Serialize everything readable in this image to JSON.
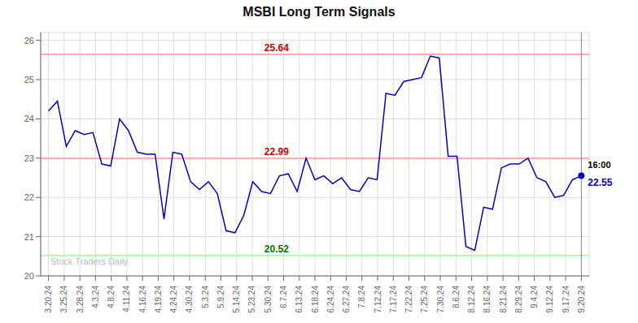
{
  "chart_data": {
    "type": "line",
    "title": "MSBI Long Term Signals",
    "grid": true,
    "xlim": [
      -0.5,
      34.5
    ],
    "xticks": [
      {
        "value": 0,
        "label": "3.20.24"
      },
      {
        "value": 1,
        "label": "3.25.24"
      },
      {
        "value": 2,
        "label": "3.28.24"
      },
      {
        "value": 3,
        "label": "4.3.24"
      },
      {
        "value": 4,
        "label": "4.8.24"
      },
      {
        "value": 5,
        "label": "4.11.24"
      },
      {
        "value": 6,
        "label": "4.16.24"
      },
      {
        "value": 7,
        "label": "4.19.24"
      },
      {
        "value": 8,
        "label": "4.24.24"
      },
      {
        "value": 9,
        "label": "4.30.24"
      },
      {
        "value": 10,
        "label": "5.3.24"
      },
      {
        "value": 11,
        "label": "5.9.24"
      },
      {
        "value": 12,
        "label": "5.14.24"
      },
      {
        "value": 13,
        "label": "5.23.24"
      },
      {
        "value": 14,
        "label": "5.30.24"
      },
      {
        "value": 15,
        "label": "6.7.24"
      },
      {
        "value": 16,
        "label": "6.13.24"
      },
      {
        "value": 17,
        "label": "6.18.24"
      },
      {
        "value": 18,
        "label": "6.24.24"
      },
      {
        "value": 19,
        "label": "6.27.24"
      },
      {
        "value": 20,
        "label": "7.8.24"
      },
      {
        "value": 21,
        "label": "7.12.24"
      },
      {
        "value": 22,
        "label": "7.17.24"
      },
      {
        "value": 23,
        "label": "7.22.24"
      },
      {
        "value": 24,
        "label": "7.25.24"
      },
      {
        "value": 25,
        "label": "7.30.24"
      },
      {
        "value": 26,
        "label": "8.6.24"
      },
      {
        "value": 27,
        "label": "8.12.24"
      },
      {
        "value": 28,
        "label": "8.16.24"
      },
      {
        "value": 29,
        "label": "8.21.24"
      },
      {
        "value": 30,
        "label": "8.29.24"
      },
      {
        "value": 31,
        "label": "9.4.24"
      },
      {
        "value": 32,
        "label": "9.12.24"
      },
      {
        "value": 33,
        "label": "9.17.24"
      },
      {
        "value": 34,
        "label": "9.20.24"
      }
    ],
    "ylim": [
      20.0,
      26.2
    ],
    "yticks": [
      20,
      21,
      22,
      23,
      24,
      25,
      26
    ],
    "x": [
      0,
      0.566667,
      1.133333,
      1.7,
      2.266667,
      2.833333,
      3.4,
      3.966667,
      4.533333,
      5.1,
      5.666667,
      6.233333,
      6.8,
      7.366667,
      7.933333,
      8.5,
      9.066667,
      9.633333,
      10.2,
      10.766667,
      11.333333,
      11.9,
      12.466667,
      13.033333,
      13.6,
      14.166667,
      14.733333,
      15.3,
      15.866667,
      16.433333,
      17,
      17.566667,
      18.133333,
      18.7,
      19.266667,
      19.833333,
      20.4,
      20.966667,
      21.533333,
      22.1,
      22.666667,
      23.233333,
      23.8,
      24.366667,
      24.933333,
      25.5,
      26.066667,
      26.633333,
      27.2,
      27.766667,
      28.333333,
      28.9,
      29.466667,
      30.033333,
      30.6,
      31.166667,
      31.733333,
      32.3,
      32.866667,
      33.433333,
      34
    ],
    "series": [
      {
        "color": "#0000cc",
        "values": [
          24.2,
          24.45,
          23.3,
          23.7,
          23.6,
          23.65,
          22.85,
          22.8,
          24.0,
          23.7,
          23.15,
          23.1,
          23.1,
          21.45,
          23.15,
          23.1,
          22.4,
          22.2,
          22.4,
          22.1,
          21.15,
          21.1,
          21.55,
          22.4,
          22.15,
          22.1,
          22.55,
          22.6,
          22.15,
          23.0,
          22.45,
          22.55,
          22.35,
          22.5,
          22.2,
          22.15,
          22.5,
          22.45,
          24.65,
          24.6,
          24.95,
          25.0,
          25.05,
          25.6,
          25.55,
          23.05,
          23.05,
          20.75,
          20.65,
          21.75,
          21.7,
          22.75,
          22.85,
          22.85,
          23.0,
          22.5,
          22.4,
          22.0,
          22.05,
          22.45,
          22.55
        ]
      }
    ],
    "hlines": [
      {
        "value": 25.64,
        "color": "#ffaaaa",
        "label_color": "#cc0000"
      },
      {
        "value": 22.99,
        "color": "#ffaaaa",
        "label_color": "#cc0000"
      },
      {
        "value": 20.52,
        "color": "#aaffaa",
        "label_color": "#007700"
      }
    ],
    "last_point": {
      "x": 34,
      "y": 22.55,
      "label": "16:00"
    },
    "annotations": [
      {
        "text": "Stock Traders Daily"
      }
    ]
  }
}
